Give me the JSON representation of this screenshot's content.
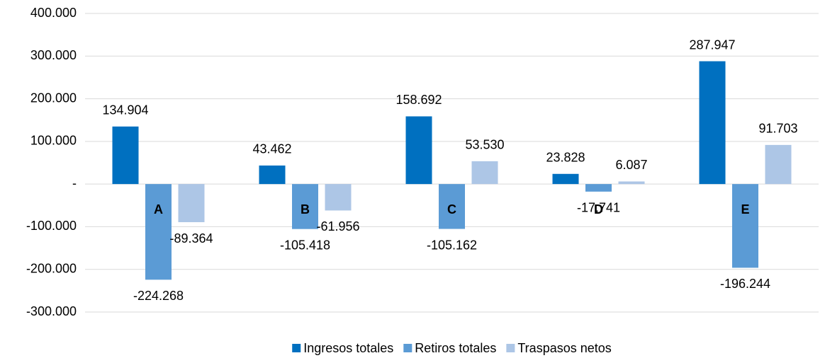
{
  "chart_data": {
    "type": "bar",
    "categories": [
      "A",
      "B",
      "C",
      "D",
      "E"
    ],
    "series": [
      {
        "name": "Ingresos totales",
        "color": "#0070c0",
        "values": [
          134904,
          43462,
          158692,
          23828,
          287947
        ],
        "value_labels": [
          "134.904",
          "43.462",
          "158.692",
          "23.828",
          "287.947"
        ]
      },
      {
        "name": "Retiros totales",
        "color": "#5b9bd5",
        "values": [
          -224268,
          -105418,
          -105162,
          -17741,
          -196244
        ],
        "value_labels": [
          "-224.268",
          "-105.418",
          "-105.162",
          "-17.741",
          "-196.244"
        ]
      },
      {
        "name": "Traspasos netos",
        "color": "#adc6e6",
        "values": [
          -89364,
          -61956,
          53530,
          6087,
          91703
        ],
        "value_labels": [
          "-89.364",
          "-61.956",
          "53.530",
          "6.087",
          "91.703"
        ]
      }
    ],
    "ylim": [
      -300000,
      400000
    ],
    "yticks": [
      {
        "value": -300000,
        "label": "-300.000"
      },
      {
        "value": -200000,
        "label": "-200.000"
      },
      {
        "value": -100000,
        "label": "-100.000"
      },
      {
        "value": 0,
        "label": "-"
      },
      {
        "value": 100000,
        "label": "100.000"
      },
      {
        "value": 200000,
        "label": "200.000"
      },
      {
        "value": 300000,
        "label": "300.000"
      },
      {
        "value": 400000,
        "label": "400.000"
      }
    ],
    "grid": true,
    "legend": "bottom"
  }
}
